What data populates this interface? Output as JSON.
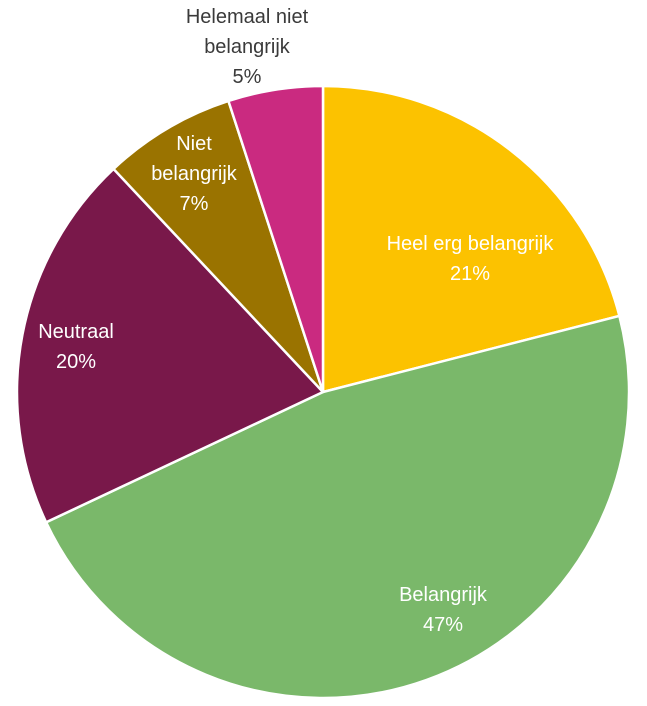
{
  "chart_data": {
    "type": "pie",
    "title": "",
    "legend": "none",
    "slices": [
      {
        "label": "Heel erg belangrijk",
        "value": 21,
        "value_label": "21%",
        "color": "#FCC200",
        "label_position": "inside"
      },
      {
        "label": "Belangrijk",
        "value": 47,
        "value_label": "47%",
        "color": "#7AB86A",
        "label_position": "inside"
      },
      {
        "label": "Neutraal",
        "value": 20,
        "value_label": "20%",
        "color": "#79184A",
        "label_position": "inside"
      },
      {
        "label": "Niet belangrijk",
        "value": 7,
        "value_label": "7%",
        "color": "#9A7300",
        "label_position": "inside"
      },
      {
        "label": "Helemaal niet belangrijk",
        "value": 5,
        "value_label": "5%",
        "color": "#CA2A80",
        "label_position": "outside"
      }
    ]
  }
}
